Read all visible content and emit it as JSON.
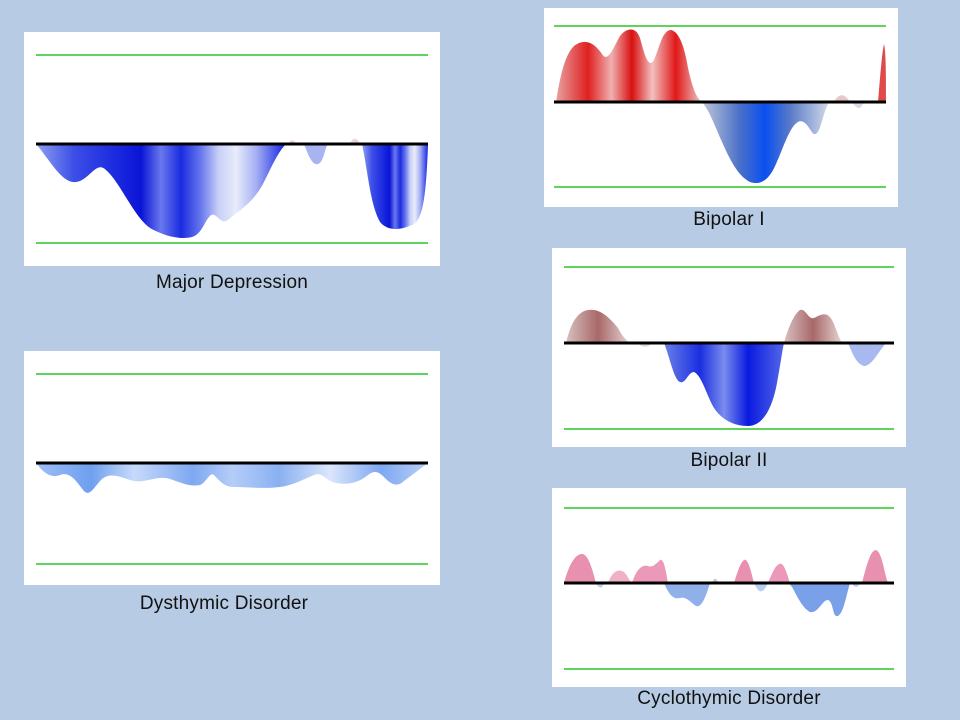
{
  "colors": {
    "background": "#b7cce4",
    "panel": "#ffffff",
    "baseline": "#000000",
    "limit_lines": "#5fd35a",
    "depression": "#0a1fe0",
    "mania": "#e01010",
    "mild_depression": "#6f9ff0",
    "hypomania": "#a06060",
    "mild_mania": "#e07fa0"
  },
  "panels": {
    "major_depression": {
      "caption": "Major Depression"
    },
    "dysthymic": {
      "caption": "Dysthymic Disorder"
    },
    "bipolar1": {
      "caption": "Bipolar I"
    },
    "bipolar2": {
      "caption": "Bipolar II"
    },
    "cyclothymic": {
      "caption": "Cyclothymic Disorder"
    }
  }
}
